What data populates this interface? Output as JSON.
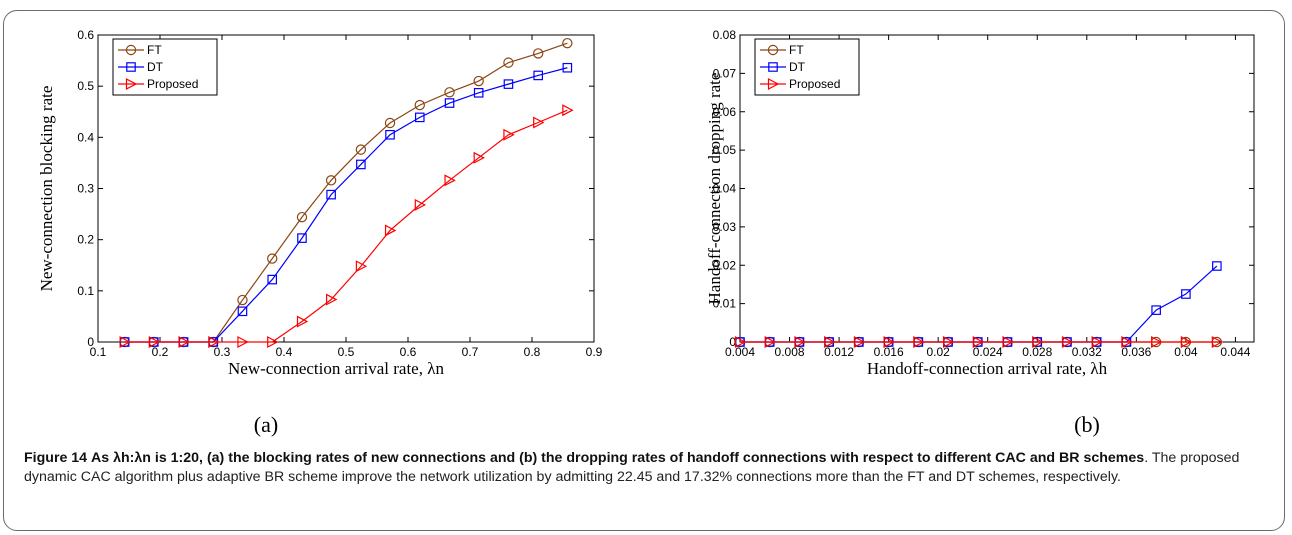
{
  "caption": {
    "fig_label": "Figure 14",
    "bold_text": "As λh:λn is 1:20, (a) the blocking rates of new connections and (b) the dropping rates of handoff connections with respect to different CAC and BR schemes",
    "body_text": ". The proposed dynamic CAC algorithm plus adaptive BR scheme improve the network utilization by admitting 22.45 and 17.32% connections more than the FT and DT schemes, respectively."
  },
  "colors": {
    "FT": "#8b4513",
    "DT": "#0000ff",
    "Proposed": "#ff0000"
  },
  "chart_data": [
    {
      "type": "line",
      "panel_label": "(a)",
      "xlabel": "New-connection arrival rate, λn",
      "ylabel": "New-connection blocking rate",
      "xlim": [
        0.1,
        0.9
      ],
      "ylim": [
        0,
        0.6
      ],
      "xticks": [
        0.1,
        0.2,
        0.3,
        0.4,
        0.5,
        0.6,
        0.7,
        0.8,
        0.9
      ],
      "xtick_labels": [
        "0.1",
        "0.2",
        "0.3",
        "0.4",
        "0.5",
        "0.6",
        "0.7",
        "0.8",
        "0.9"
      ],
      "yticks": [
        0,
        0.1,
        0.2,
        0.3,
        0.4,
        0.5,
        0.6
      ],
      "ytick_labels": [
        "0",
        "0.1",
        "0.2",
        "0.3",
        "0.4",
        "0.5",
        "0.6"
      ],
      "legend_position": "top-left",
      "x": [
        0.143,
        0.19,
        0.238,
        0.286,
        0.333,
        0.381,
        0.429,
        0.476,
        0.524,
        0.571,
        0.619,
        0.667,
        0.714,
        0.762,
        0.81,
        0.857
      ],
      "series": [
        {
          "name": "FT",
          "marker": "circle",
          "values": [
            0,
            0,
            0,
            0,
            0.082,
            0.163,
            0.244,
            0.316,
            0.376,
            0.428,
            0.463,
            0.488,
            0.51,
            0.546,
            0.564,
            0.584
          ]
        },
        {
          "name": "DT",
          "marker": "square",
          "values": [
            0,
            0,
            0,
            0,
            0.06,
            0.122,
            0.203,
            0.288,
            0.347,
            0.405,
            0.439,
            0.467,
            0.487,
            0.504,
            0.521,
            0.536
          ]
        },
        {
          "name": "Proposed",
          "marker": "triangle-right",
          "values": [
            0,
            0,
            0,
            0,
            0,
            0,
            0.04,
            0.083,
            0.148,
            0.218,
            0.268,
            0.316,
            0.36,
            0.405,
            0.429,
            0.453
          ]
        }
      ]
    },
    {
      "type": "line",
      "panel_label": "(b)",
      "xlabel": "Handoff-connection arrival rate, λh",
      "ylabel": "Handoff-connection dropping rate",
      "xlim": [
        0.004,
        0.0455
      ],
      "ylim": [
        0,
        0.08
      ],
      "xticks": [
        0.004,
        0.008,
        0.012,
        0.016,
        0.02,
        0.024,
        0.028,
        0.032,
        0.036,
        0.04,
        0.044
      ],
      "xtick_labels": [
        "0.004",
        "0.008",
        "0.012",
        "0.016",
        "0.02",
        "0.024",
        "0.028",
        "0.032",
        "0.036",
        "0.04",
        "0.044"
      ],
      "yticks": [
        0,
        0.01,
        0.02,
        0.03,
        0.04,
        0.05,
        0.06,
        0.07,
        0.08
      ],
      "ytick_labels": [
        "0",
        "0.01",
        "0.02",
        "0.03",
        "0.04",
        "0.05",
        "0.06",
        "0.07",
        "0.08"
      ],
      "legend_position": "top-left",
      "x": [
        0.004,
        0.0064,
        0.0088,
        0.0112,
        0.0136,
        0.016,
        0.0184,
        0.0208,
        0.0232,
        0.0256,
        0.028,
        0.0304,
        0.0328,
        0.0352,
        0.0376,
        0.04,
        0.0425
      ],
      "series": [
        {
          "name": "FT",
          "marker": "circle",
          "values": [
            0,
            0,
            0,
            0,
            0,
            0,
            0,
            0,
            0,
            0,
            0,
            0,
            0,
            0,
            0,
            0,
            0
          ]
        },
        {
          "name": "DT",
          "marker": "square",
          "values": [
            0,
            0,
            0,
            0,
            0,
            0,
            0,
            0,
            0,
            0,
            0,
            0,
            0,
            0,
            0.0083,
            0.0125,
            0.0198
          ]
        },
        {
          "name": "Proposed",
          "marker": "triangle-right",
          "values": [
            0,
            0,
            0,
            0,
            0,
            0,
            0,
            0,
            0,
            0,
            0,
            0,
            0,
            0,
            0,
            0,
            0
          ]
        }
      ]
    }
  ]
}
